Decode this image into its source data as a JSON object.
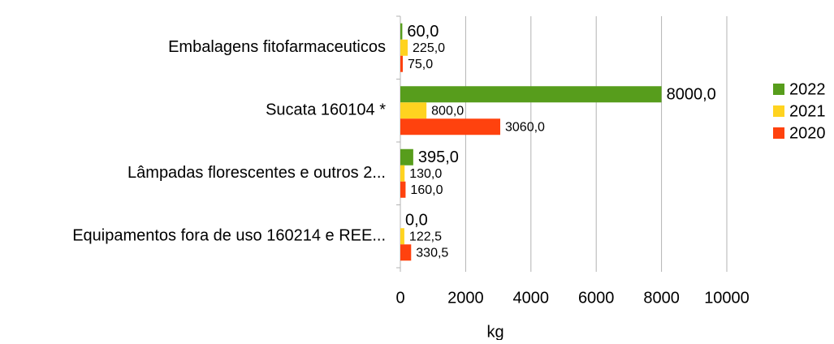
{
  "chart_data": {
    "type": "bar",
    "orientation": "horizontal",
    "categories": [
      "Embalagens fitofarmaceuticos",
      "Sucata 160104 *",
      "Lâmpadas florescentes e outros 2...",
      "Equipamentos fora de uso 160214 e REE..."
    ],
    "series": [
      {
        "name": "2022",
        "color": "#579d1c",
        "values": [
          60,
          8000,
          395,
          0
        ],
        "value_labels": [
          "60,0",
          "8000,0",
          "395,0",
          "0,0"
        ]
      },
      {
        "name": "2021",
        "color": "#ffd320",
        "values": [
          225,
          800,
          130,
          122.5
        ],
        "value_labels": [
          "225,0",
          "800,0",
          "130,0",
          "122,5"
        ]
      },
      {
        "name": "2020",
        "color": "#ff420e",
        "values": [
          75,
          3060,
          160,
          330.5
        ],
        "value_labels": [
          "75,0",
          "3060,0",
          "160,0",
          "330,5"
        ]
      }
    ],
    "xlabel": "kg",
    "xlim": [
      0,
      10000
    ],
    "xticks": [
      0,
      2000,
      4000,
      6000,
      8000,
      10000
    ],
    "grid": true,
    "legend": "right"
  }
}
